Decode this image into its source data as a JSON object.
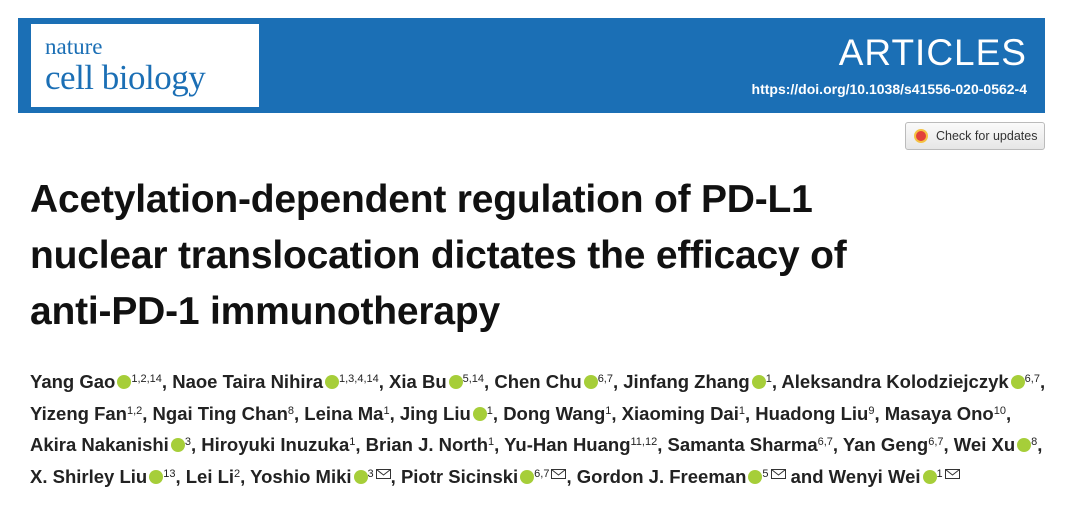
{
  "header": {
    "journal_line1": "nature",
    "journal_line2": "cell biology",
    "section": "ARTICLES",
    "doi": "https://doi.org/10.1038/s41556-020-0562-4"
  },
  "check_updates": "Check for updates",
  "title_lines": [
    "Acetylation-dependent regulation of PD-L1",
    "nuclear translocation dictates the efficacy of",
    "anti-PD-1 immunotherapy"
  ],
  "separator": ",",
  "conjunction": "and",
  "authors": [
    {
      "name": "Yang Gao",
      "affiliations": "1,2,14",
      "orcid": true,
      "corresponding": false
    },
    {
      "name": "Naoe Taira Nihira",
      "affiliations": "1,3,4,14",
      "orcid": true,
      "corresponding": false
    },
    {
      "name": "Xia Bu",
      "affiliations": "5,14",
      "orcid": true,
      "corresponding": false
    },
    {
      "name": "Chen Chu",
      "affiliations": "6,7",
      "orcid": true,
      "corresponding": false
    },
    {
      "name": "Jinfang Zhang",
      "affiliations": "1",
      "orcid": true,
      "corresponding": false
    },
    {
      "name": "Aleksandra Kolodziejczyk",
      "affiliations": "6,7",
      "orcid": true,
      "corresponding": false
    },
    {
      "name": "Yizeng Fan",
      "affiliations": "1,2",
      "orcid": false,
      "corresponding": false
    },
    {
      "name": "Ngai Ting Chan",
      "affiliations": "8",
      "orcid": false,
      "corresponding": false
    },
    {
      "name": "Leina Ma",
      "affiliations": "1",
      "orcid": false,
      "corresponding": false
    },
    {
      "name": "Jing Liu",
      "affiliations": "1",
      "orcid": true,
      "corresponding": false
    },
    {
      "name": "Dong Wang",
      "affiliations": "1",
      "orcid": false,
      "corresponding": false
    },
    {
      "name": "Xiaoming Dai",
      "affiliations": "1",
      "orcid": false,
      "corresponding": false
    },
    {
      "name": "Huadong Liu",
      "affiliations": "9",
      "orcid": false,
      "corresponding": false
    },
    {
      "name": "Masaya Ono",
      "affiliations": "10",
      "orcid": false,
      "corresponding": false
    },
    {
      "name": "Akira Nakanishi",
      "affiliations": "3",
      "orcid": true,
      "corresponding": false
    },
    {
      "name": "Hiroyuki Inuzuka",
      "affiliations": "1",
      "orcid": false,
      "corresponding": false
    },
    {
      "name": "Brian J. North",
      "affiliations": "1",
      "orcid": false,
      "corresponding": false
    },
    {
      "name": "Yu-Han Huang",
      "affiliations": "11,12",
      "orcid": false,
      "corresponding": false
    },
    {
      "name": "Samanta Sharma",
      "affiliations": "6,7",
      "orcid": false,
      "corresponding": false
    },
    {
      "name": "Yan Geng",
      "affiliations": "6,7",
      "orcid": false,
      "corresponding": false
    },
    {
      "name": "Wei Xu",
      "affiliations": "8",
      "orcid": true,
      "corresponding": false
    },
    {
      "name": "X. Shirley Liu",
      "affiliations": "13",
      "orcid": true,
      "corresponding": false
    },
    {
      "name": "Lei Li",
      "affiliations": "2",
      "orcid": false,
      "corresponding": false
    },
    {
      "name": "Yoshio Miki",
      "affiliations": "3",
      "orcid": true,
      "corresponding": true
    },
    {
      "name": "Piotr Sicinski",
      "affiliations": "6,7",
      "orcid": true,
      "corresponding": true
    },
    {
      "name": "Gordon J. Freeman",
      "affiliations": "5",
      "orcid": true,
      "corresponding": true
    },
    {
      "name": "Wenyi Wei",
      "affiliations": "1",
      "orcid": true,
      "corresponding": true
    }
  ]
}
